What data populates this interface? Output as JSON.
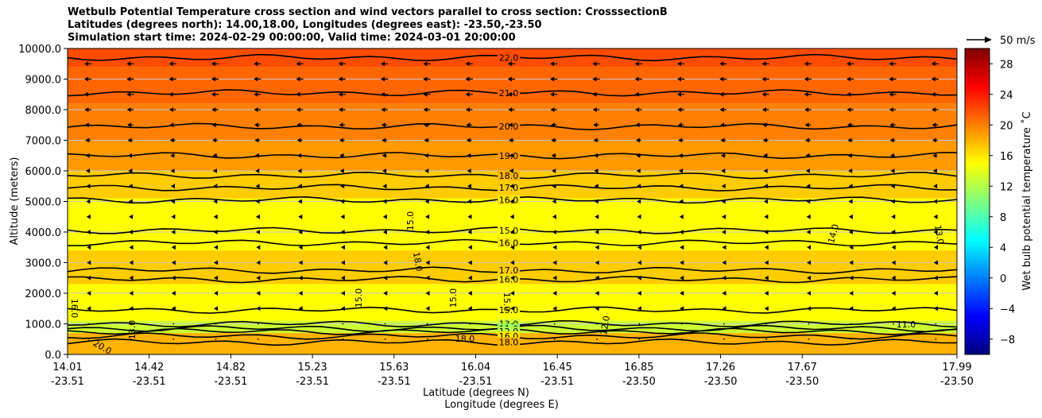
{
  "chart_data": {
    "type": "contour",
    "title_lines": [
      "Wetbulb Potential Temperature cross section and wind vectors parallel to cross section: CrosssectionB",
      "Latitudes (degrees north): 14.00,18.00, Longitudes (degrees east): -23.50,-23.50",
      "Simulation start time: 2024-02-29 00:00:00, Valid time: 2024-03-01 20:00:00"
    ],
    "ylabel": "Altitude (meters)",
    "xlabel_lat": "Latitude (degrees N)",
    "xlabel_lon": "Longitude (degrees E)",
    "ylim": [
      0,
      10000
    ],
    "yticks": [
      "0.0",
      "1000.0",
      "2000.0",
      "3000.0",
      "4000.0",
      "5000.0",
      "6000.0",
      "7000.0",
      "8000.0",
      "9000.0",
      "10000.0"
    ],
    "xticks_lat": [
      "14.01",
      "14.42",
      "14.82",
      "15.23",
      "15.63",
      "16.04",
      "16.45",
      "16.85",
      "17.26",
      "17.67",
      "17.99"
    ],
    "xticks_lon": [
      "-23.51",
      "-23.51",
      "-23.51",
      "-23.51",
      "-23.51",
      "-23.51",
      "-23.51",
      "-23.50",
      "-23.50",
      "-23.50",
      "-23.50"
    ],
    "colorbar": {
      "label": "Wet bulb potential temperature ˚C",
      "range": [
        -10,
        30
      ],
      "ticks": [
        "−8",
        "−4",
        "0",
        "4",
        "8",
        "12",
        "16",
        "20",
        "24",
        "28"
      ]
    },
    "quiver_key": "50 m/s",
    "contour_levels": [
      {
        "altitude": 9700,
        "value": 22.0,
        "label": "22.0"
      },
      {
        "altitude": 8550,
        "value": 21.0,
        "label": "21.0"
      },
      {
        "altitude": 7450,
        "value": 20.0,
        "label": "20.0"
      },
      {
        "altitude": 6500,
        "value": 19.0,
        "label": "19.0"
      },
      {
        "altitude": 5850,
        "value": 18.0,
        "label": "18.0"
      },
      {
        "altitude": 5450,
        "value": 17.0,
        "label": "17.0"
      },
      {
        "altitude": 5050,
        "value": 16.0,
        "label": "16.0"
      },
      {
        "altitude": 4050,
        "value": 15.0,
        "label": "15.0"
      },
      {
        "altitude": 3650,
        "value": 16.0,
        "label": "16.0"
      },
      {
        "altitude": 2750,
        "value": 17.0,
        "label": "17.0"
      },
      {
        "altitude": 2450,
        "value": 16.0,
        "label": "16.0"
      },
      {
        "altitude": 1450,
        "value": 15.0,
        "label": "15.0"
      },
      {
        "altitude": 1000,
        "value": 13.0,
        "label": "13.0"
      },
      {
        "altitude": 850,
        "value": 11.0,
        "label": "11.0"
      },
      {
        "altitude": 750,
        "value": 12.0,
        "label": "12.0"
      },
      {
        "altitude": 600,
        "value": 16.0,
        "label": "16.0"
      },
      {
        "altitude": 400,
        "value": 18.0,
        "label": "18.0"
      }
    ],
    "extra_labels": [
      "15.0",
      "18.0",
      "14.0",
      "13.0",
      "15.0",
      "15.0",
      "15.0",
      "16.0",
      "20.0",
      "18.0",
      "11.0",
      "12.0",
      "13.0"
    ],
    "fill_bands": [
      {
        "from": 0,
        "to": 700,
        "value": 18
      },
      {
        "from": 700,
        "to": 1100,
        "value": 13
      },
      {
        "from": 1100,
        "to": 2300,
        "value": 15
      },
      {
        "from": 2300,
        "to": 3400,
        "value": 17
      },
      {
        "from": 3400,
        "to": 5100,
        "value": 15
      },
      {
        "from": 5100,
        "to": 6000,
        "value": 17
      },
      {
        "from": 6000,
        "to": 7000,
        "value": 19
      },
      {
        "from": 7000,
        "to": 8200,
        "value": 20
      },
      {
        "from": 8200,
        "to": 9400,
        "value": 21
      },
      {
        "from": 9400,
        "to": 10000,
        "value": 22
      }
    ],
    "wind_rows_altitude": [
      9500,
      9000,
      8500,
      8000,
      7500,
      7000,
      6500,
      6000,
      5500,
      5000,
      4500,
      4000,
      3500,
      3000,
      2500,
      2000,
      1500,
      1000,
      500
    ],
    "wind_u_by_row": [
      -9,
      -9,
      -9,
      -8,
      -7,
      -6,
      -5,
      -4,
      -3,
      -3,
      -2,
      -2,
      -1,
      -1,
      -1,
      -1,
      -1,
      0,
      0
    ]
  }
}
